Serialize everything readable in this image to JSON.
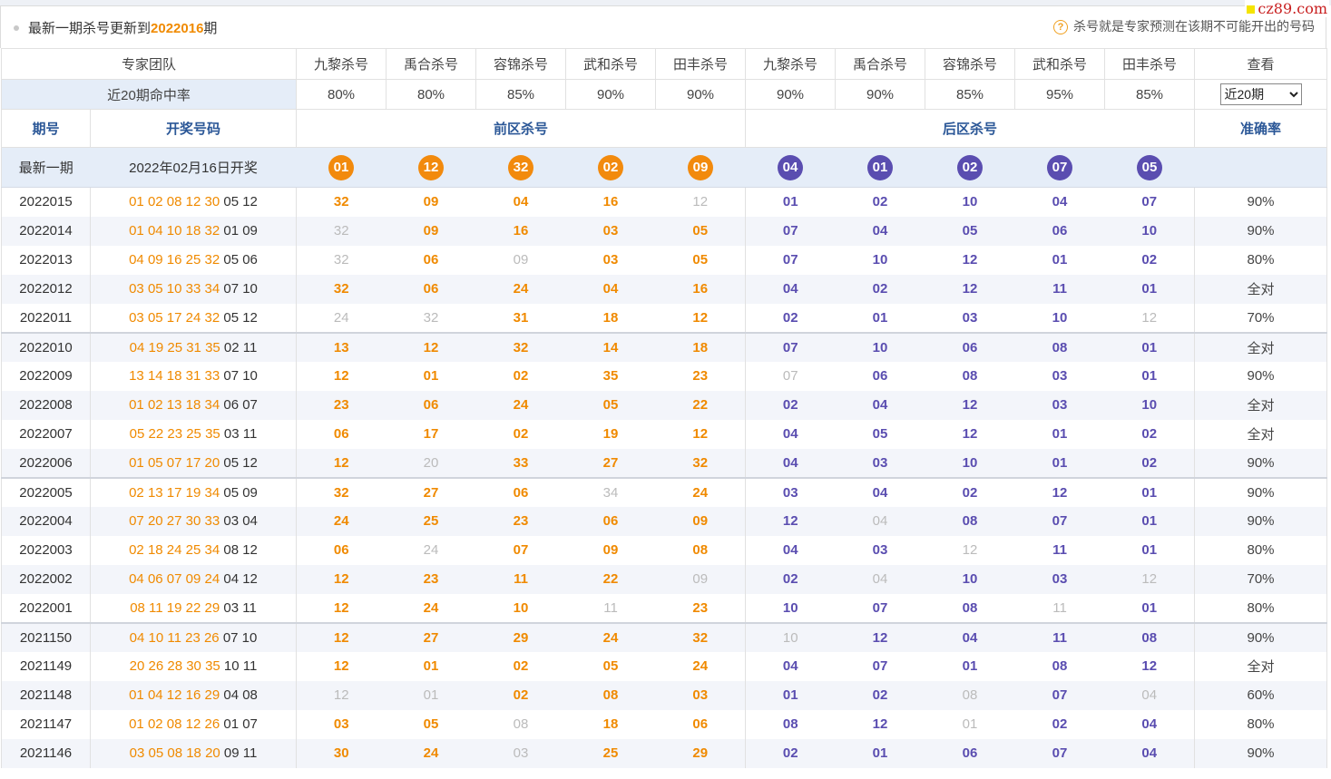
{
  "notice": {
    "text_pre": "最新一期杀号更新到",
    "issue": "2022016",
    "text_post": "期",
    "hint": "杀号就是专家预测在该期不可能开出的号码",
    "watermark": "cz89.com"
  },
  "header": {
    "team_label": "专家团队",
    "experts": [
      "九黎杀号",
      "禹合杀号",
      "容锦杀号",
      "武和杀号",
      "田丰杀号",
      "九黎杀号",
      "禹合杀号",
      "容锦杀号",
      "武和杀号",
      "田丰杀号"
    ],
    "view_label": "查看",
    "rate_label": "近20期命中率",
    "rates": [
      "80%",
      "80%",
      "85%",
      "90%",
      "90%",
      "90%",
      "90%",
      "85%",
      "95%",
      "85%"
    ],
    "select_value": "近20期",
    "col_period": "期号",
    "col_draw": "开奖号码",
    "col_front": "前区杀号",
    "col_back": "后区杀号",
    "col_acc": "准确率"
  },
  "latest": {
    "label": "最新一期",
    "draw_text": "2022年02月16日开奖",
    "front_kills": [
      "01",
      "12",
      "32",
      "02",
      "09"
    ],
    "back_kills": [
      "04",
      "01",
      "02",
      "07",
      "05"
    ]
  },
  "colors": {
    "orange": "#f08a00",
    "purple": "#5a4db0",
    "grey": "#bbbbbb",
    "header_blue": "#2b5797"
  },
  "rows": [
    {
      "period": "2022015",
      "front": "01 02 08 12 30",
      "back": "05 12",
      "fk": [
        "32",
        "09",
        "04",
        "16",
        "12"
      ],
      "fm": [
        1,
        1,
        1,
        1,
        0
      ],
      "bk": [
        "01",
        "02",
        "10",
        "04",
        "07"
      ],
      "bm": [
        1,
        1,
        1,
        1,
        1
      ],
      "acc": "90%"
    },
    {
      "period": "2022014",
      "front": "01 04 10 18 32",
      "back": "01 09",
      "fk": [
        "32",
        "09",
        "16",
        "03",
        "05"
      ],
      "fm": [
        0,
        1,
        1,
        1,
        1
      ],
      "bk": [
        "07",
        "04",
        "05",
        "06",
        "10"
      ],
      "bm": [
        1,
        1,
        1,
        1,
        1
      ],
      "acc": "90%"
    },
    {
      "period": "2022013",
      "front": "04 09 16 25 32",
      "back": "05 06",
      "fk": [
        "32",
        "06",
        "09",
        "03",
        "05"
      ],
      "fm": [
        0,
        1,
        0,
        1,
        1
      ],
      "bk": [
        "07",
        "10",
        "12",
        "01",
        "02"
      ],
      "bm": [
        1,
        1,
        1,
        1,
        1
      ],
      "acc": "80%"
    },
    {
      "period": "2022012",
      "front": "03 05 10 33 34",
      "back": "07 10",
      "fk": [
        "32",
        "06",
        "24",
        "04",
        "16"
      ],
      "fm": [
        1,
        1,
        1,
        1,
        1
      ],
      "bk": [
        "04",
        "02",
        "12",
        "11",
        "01"
      ],
      "bm": [
        1,
        1,
        1,
        1,
        1
      ],
      "acc": "全对"
    },
    {
      "period": "2022011",
      "front": "03 05 17 24 32",
      "back": "05 12",
      "fk": [
        "24",
        "32",
        "31",
        "18",
        "12"
      ],
      "fm": [
        0,
        0,
        1,
        1,
        1
      ],
      "bk": [
        "02",
        "01",
        "03",
        "10",
        "12"
      ],
      "bm": [
        1,
        1,
        1,
        1,
        0
      ],
      "acc": "70%"
    },
    {
      "period": "2022010",
      "front": "04 19 25 31 35",
      "back": "02 11",
      "fk": [
        "13",
        "12",
        "32",
        "14",
        "18"
      ],
      "fm": [
        1,
        1,
        1,
        1,
        1
      ],
      "bk": [
        "07",
        "10",
        "06",
        "08",
        "01"
      ],
      "bm": [
        1,
        1,
        1,
        1,
        1
      ],
      "acc": "全对"
    },
    {
      "period": "2022009",
      "front": "13 14 18 31 33",
      "back": "07 10",
      "fk": [
        "12",
        "01",
        "02",
        "35",
        "23"
      ],
      "fm": [
        1,
        1,
        1,
        1,
        1
      ],
      "bk": [
        "07",
        "06",
        "08",
        "03",
        "01"
      ],
      "bm": [
        0,
        1,
        1,
        1,
        1
      ],
      "acc": "90%"
    },
    {
      "period": "2022008",
      "front": "01 02 13 18 34",
      "back": "06 07",
      "fk": [
        "23",
        "06",
        "24",
        "05",
        "22"
      ],
      "fm": [
        1,
        1,
        1,
        1,
        1
      ],
      "bk": [
        "02",
        "04",
        "12",
        "03",
        "10"
      ],
      "bm": [
        1,
        1,
        1,
        1,
        1
      ],
      "acc": "全对"
    },
    {
      "period": "2022007",
      "front": "05 22 23 25 35",
      "back": "03 11",
      "fk": [
        "06",
        "17",
        "02",
        "19",
        "12"
      ],
      "fm": [
        1,
        1,
        1,
        1,
        1
      ],
      "bk": [
        "04",
        "05",
        "12",
        "01",
        "02"
      ],
      "bm": [
        1,
        1,
        1,
        1,
        1
      ],
      "acc": "全对"
    },
    {
      "period": "2022006",
      "front": "01 05 07 17 20",
      "back": "05 12",
      "fk": [
        "12",
        "20",
        "33",
        "27",
        "32"
      ],
      "fm": [
        1,
        0,
        1,
        1,
        1
      ],
      "bk": [
        "04",
        "03",
        "10",
        "01",
        "02"
      ],
      "bm": [
        1,
        1,
        1,
        1,
        1
      ],
      "acc": "90%"
    },
    {
      "period": "2022005",
      "front": "02 13 17 19 34",
      "back": "05 09",
      "fk": [
        "32",
        "27",
        "06",
        "34",
        "24"
      ],
      "fm": [
        1,
        1,
        1,
        0,
        1
      ],
      "bk": [
        "03",
        "04",
        "02",
        "12",
        "01"
      ],
      "bm": [
        1,
        1,
        1,
        1,
        1
      ],
      "acc": "90%"
    },
    {
      "period": "2022004",
      "front": "07 20 27 30 33",
      "back": "03 04",
      "fk": [
        "24",
        "25",
        "23",
        "06",
        "09"
      ],
      "fm": [
        1,
        1,
        1,
        1,
        1
      ],
      "bk": [
        "12",
        "04",
        "08",
        "07",
        "01"
      ],
      "bm": [
        1,
        0,
        1,
        1,
        1
      ],
      "acc": "90%"
    },
    {
      "period": "2022003",
      "front": "02 18 24 25 34",
      "back": "08 12",
      "fk": [
        "06",
        "24",
        "07",
        "09",
        "08"
      ],
      "fm": [
        1,
        0,
        1,
        1,
        1
      ],
      "bk": [
        "04",
        "03",
        "12",
        "11",
        "01"
      ],
      "bm": [
        1,
        1,
        0,
        1,
        1
      ],
      "acc": "80%"
    },
    {
      "period": "2022002",
      "front": "04 06 07 09 24",
      "back": "04 12",
      "fk": [
        "12",
        "23",
        "11",
        "22",
        "09"
      ],
      "fm": [
        1,
        1,
        1,
        1,
        0
      ],
      "bk": [
        "02",
        "04",
        "10",
        "03",
        "12"
      ],
      "bm": [
        1,
        0,
        1,
        1,
        0
      ],
      "acc": "70%"
    },
    {
      "period": "2022001",
      "front": "08 11 19 22 29",
      "back": "03 11",
      "fk": [
        "12",
        "24",
        "10",
        "11",
        "23"
      ],
      "fm": [
        1,
        1,
        1,
        0,
        1
      ],
      "bk": [
        "10",
        "07",
        "08",
        "11",
        "01"
      ],
      "bm": [
        1,
        1,
        1,
        0,
        1
      ],
      "acc": "80%"
    },
    {
      "period": "2021150",
      "front": "04 10 11 23 26",
      "back": "07 10",
      "fk": [
        "12",
        "27",
        "29",
        "24",
        "32"
      ],
      "fm": [
        1,
        1,
        1,
        1,
        1
      ],
      "bk": [
        "10",
        "12",
        "04",
        "11",
        "08"
      ],
      "bm": [
        0,
        1,
        1,
        1,
        1
      ],
      "acc": "90%"
    },
    {
      "period": "2021149",
      "front": "20 26 28 30 35",
      "back": "10 11",
      "fk": [
        "12",
        "01",
        "02",
        "05",
        "24"
      ],
      "fm": [
        1,
        1,
        1,
        1,
        1
      ],
      "bk": [
        "04",
        "07",
        "01",
        "08",
        "12"
      ],
      "bm": [
        1,
        1,
        1,
        1,
        1
      ],
      "acc": "全对"
    },
    {
      "period": "2021148",
      "front": "01 04 12 16 29",
      "back": "04 08",
      "fk": [
        "12",
        "01",
        "02",
        "08",
        "03"
      ],
      "fm": [
        0,
        0,
        1,
        1,
        1
      ],
      "bk": [
        "01",
        "02",
        "08",
        "07",
        "04"
      ],
      "bm": [
        1,
        1,
        0,
        1,
        0
      ],
      "acc": "60%"
    },
    {
      "period": "2021147",
      "front": "01 02 08 12 26",
      "back": "01 07",
      "fk": [
        "03",
        "05",
        "08",
        "18",
        "06"
      ],
      "fm": [
        1,
        1,
        0,
        1,
        1
      ],
      "bk": [
        "08",
        "12",
        "01",
        "02",
        "04"
      ],
      "bm": [
        1,
        1,
        0,
        1,
        1
      ],
      "acc": "80%"
    },
    {
      "period": "2021146",
      "front": "03 05 08 18 20",
      "back": "09 11",
      "fk": [
        "30",
        "24",
        "03",
        "25",
        "29"
      ],
      "fm": [
        1,
        1,
        0,
        1,
        1
      ],
      "bk": [
        "02",
        "01",
        "06",
        "07",
        "04"
      ],
      "bm": [
        1,
        1,
        1,
        1,
        1
      ],
      "acc": "90%"
    }
  ]
}
